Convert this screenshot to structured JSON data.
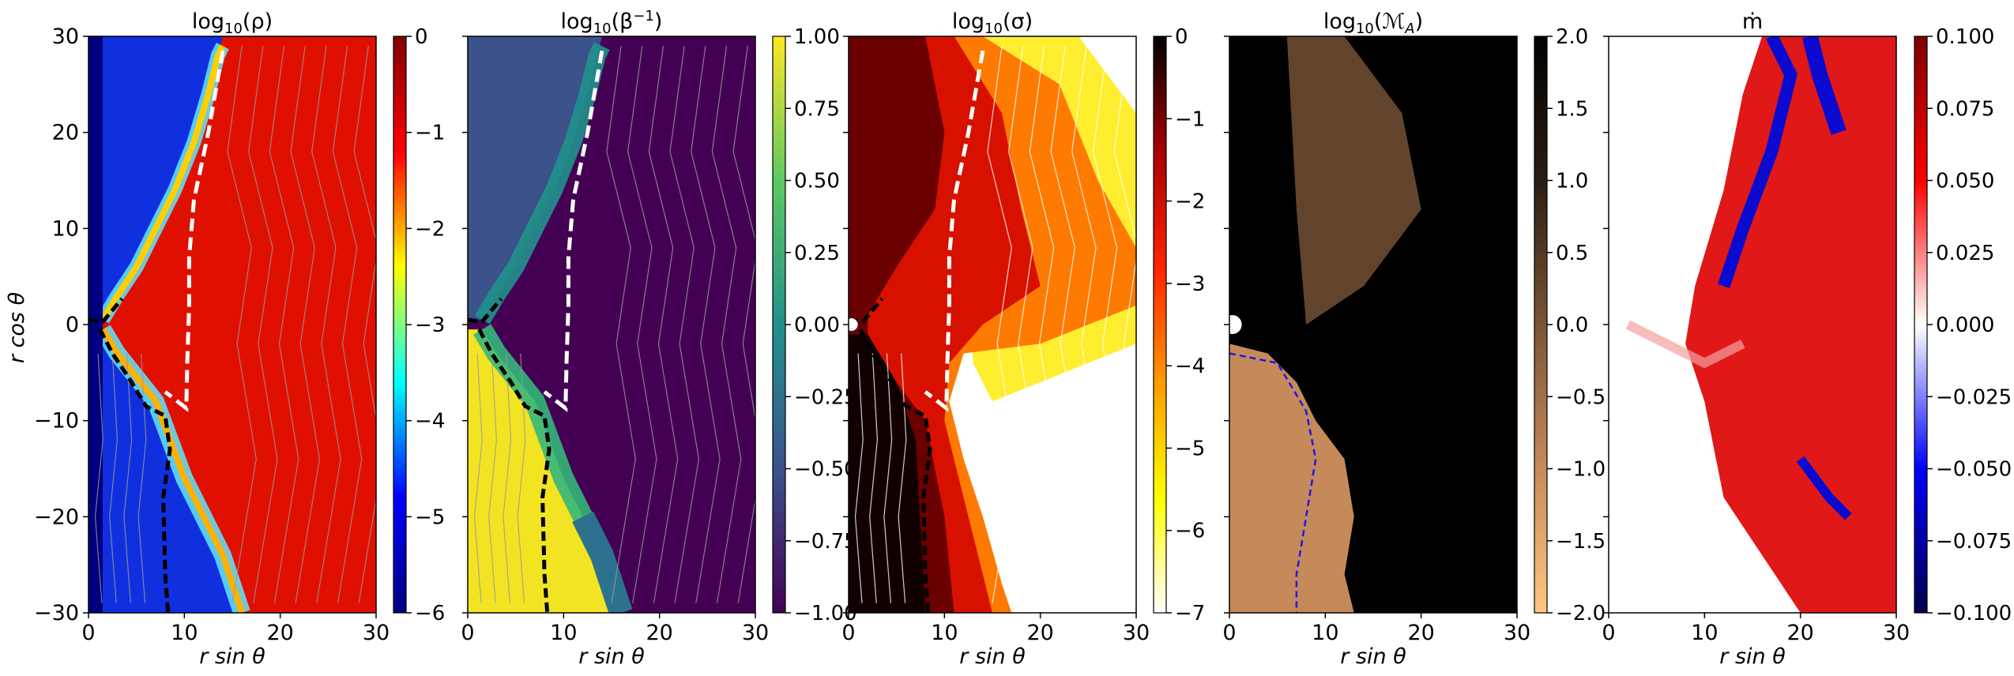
{
  "figure": {
    "ylabel": "r cos θ",
    "xlabel": "r sin θ"
  },
  "chart_data": [
    {
      "type": "heatmap",
      "title": "log10(ρ)",
      "title_parts": {
        "pre": "log",
        "sub": "10",
        "arg": "(ρ)"
      },
      "xlabel": "r sin θ",
      "ylabel": "r cos θ",
      "xlim": [
        0,
        30
      ],
      "ylim": [
        -30,
        30
      ],
      "xticks": [
        0,
        10,
        20,
        30
      ],
      "yticks": [
        -30,
        -20,
        -10,
        0,
        10,
        20,
        30
      ],
      "colormap": "jet",
      "colors": [
        "#00007f",
        "#0000ff",
        "#00ffff",
        "#ffff00",
        "#ff0000",
        "#7f0000"
      ],
      "colorbar": {
        "min": -6,
        "max": 0,
        "ticks": [
          -6,
          -5,
          -4,
          -3,
          -2,
          -1,
          0
        ],
        "labels": [
          "−6",
          "−5",
          "−4",
          "−3",
          "−2",
          "−1",
          "0"
        ]
      },
      "overlays": [
        "grey field lines",
        "white dashed contour",
        "black dashed contour"
      ]
    },
    {
      "type": "heatmap",
      "title": "log10(β^-1)",
      "title_parts": {
        "pre": "log",
        "sub": "10",
        "arg": "(β",
        "sup": "−1",
        "close": ")"
      },
      "xlabel": "r sin θ",
      "xlim": [
        0,
        30
      ],
      "ylim": [
        -30,
        30
      ],
      "xticks": [
        0,
        10,
        20,
        30
      ],
      "colormap": "viridis",
      "colors": [
        "#440154",
        "#3b528b",
        "#21918c",
        "#5ec962",
        "#fde725"
      ],
      "colorbar": {
        "min": -1.0,
        "max": 1.0,
        "ticks": [
          -1.0,
          -0.75,
          -0.5,
          -0.25,
          0.0,
          0.25,
          0.5,
          0.75,
          1.0
        ],
        "labels": [
          "−1.00",
          "−0.75",
          "−0.50",
          "−0.25",
          "0.00",
          "0.25",
          "0.50",
          "0.75",
          "1.00"
        ]
      },
      "overlays": [
        "grey field lines",
        "white dashed contour",
        "black dashed contour"
      ]
    },
    {
      "type": "heatmap",
      "title": "log10(σ)",
      "title_parts": {
        "pre": "log",
        "sub": "10",
        "arg": "(σ)"
      },
      "xlabel": "r sin θ",
      "xlim": [
        0,
        30
      ],
      "ylim": [
        -30,
        30
      ],
      "xticks": [
        0,
        10,
        20,
        30
      ],
      "colormap": "hot_r",
      "colors": [
        "#ffffff",
        "#ffff00",
        "#ff9900",
        "#ff2200",
        "#aa0000",
        "#000000"
      ],
      "colorbar": {
        "min": -7,
        "max": 0,
        "ticks": [
          -7,
          -6,
          -5,
          -4,
          -3,
          -2,
          -1,
          0
        ],
        "labels": [
          "−7",
          "−6",
          "−5",
          "−4",
          "−3",
          "−2",
          "−1",
          "0"
        ]
      },
      "overlays": [
        "white field lines",
        "white dashed contour",
        "black dashed contour"
      ]
    },
    {
      "type": "heatmap",
      "title": "log10(MA)",
      "title_parts": {
        "pre": "log",
        "sub": "10",
        "arg": "(ℳ",
        "sub2": "A",
        "close": ")"
      },
      "xlabel": "r sin θ",
      "xlim": [
        0,
        30
      ],
      "ylim": [
        -30,
        30
      ],
      "xticks": [
        0,
        10,
        20,
        30
      ],
      "colormap": "copper_r",
      "colors": [
        "#ffc77f",
        "#c68a5a",
        "#7a5537",
        "#2b1d12",
        "#000000"
      ],
      "colorbar": {
        "min": -2.0,
        "max": 2.0,
        "ticks": [
          -2.0,
          -1.5,
          -1.0,
          -0.5,
          0.0,
          0.5,
          1.0,
          1.5,
          2.0
        ],
        "labels": [
          "−2.0",
          "−1.5",
          "−1.0",
          "−0.5",
          "0.0",
          "0.5",
          "1.0",
          "1.5",
          "2.0"
        ]
      },
      "overlays": [
        "blue dashed contour"
      ]
    },
    {
      "type": "heatmap",
      "title": "ṁ",
      "title_parts": {
        "pre": "ṁ"
      },
      "xlabel": "r sin θ",
      "xlim": [
        0,
        30
      ],
      "ylim": [
        -30,
        30
      ],
      "xticks": [
        0,
        10,
        20,
        30
      ],
      "colormap": "seismic",
      "colors": [
        "#00004c",
        "#0000ff",
        "#ffffff",
        "#ff0000",
        "#7f0000"
      ],
      "colorbar": {
        "min": -0.1,
        "max": 0.1,
        "ticks": [
          -0.1,
          -0.075,
          -0.05,
          -0.025,
          0.0,
          0.025,
          0.05,
          0.075,
          0.1
        ],
        "labels": [
          "−0.100",
          "−0.075",
          "−0.050",
          "−0.025",
          "0.000",
          "0.025",
          "0.050",
          "0.075",
          "0.100"
        ]
      },
      "overlays": []
    }
  ]
}
